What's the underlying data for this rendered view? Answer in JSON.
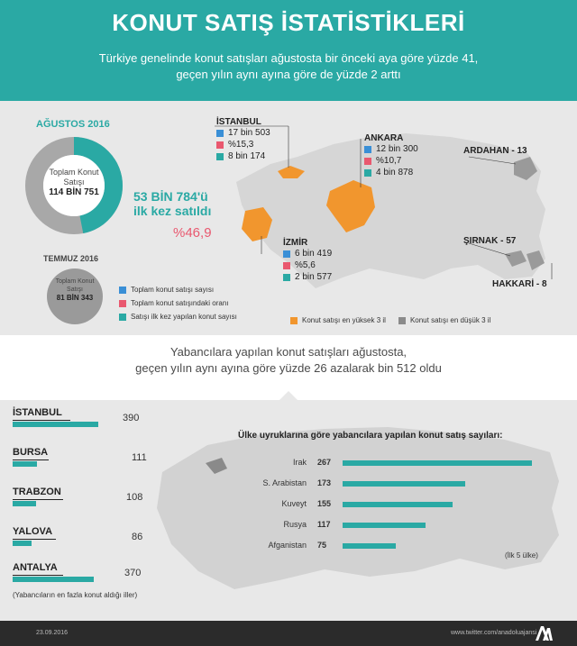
{
  "header": {
    "title": "KONUT SATIŞ İSTATİSTİKLERİ",
    "subtitle_line1": "Türkiye genelinde konut satışları ağustosta bir önceki aya göre yüzde 41,",
    "subtitle_line2": "geçen yılın aynı ayına göre de yüzde 2 arttı"
  },
  "summary": {
    "august_label": "AĞUSTOS 2016",
    "august_total_label": "Toplam Konut Satışı",
    "august_total_value": "114 BİN 751",
    "first_sale_line1": "53 BİN 784'ü",
    "first_sale_line2": "ilk kez satıldı",
    "first_sale_pct": "%46,9",
    "july_label": "TEMMUZ 2016",
    "july_total_label": "Toplam Konut Satışı",
    "july_total_value": "81 BİN 343"
  },
  "cities": [
    {
      "name": "İSTANBUL",
      "total": "17 bin 503",
      "share": "%15,3",
      "first": "8 bin 174"
    },
    {
      "name": "ANKARA",
      "total": "12 bin 300",
      "share": "%10,7",
      "first": "4 bin 878"
    },
    {
      "name": "İZMİR",
      "total": "6 bin 419",
      "share": "%5,6",
      "first": "2 bin 577"
    }
  ],
  "lowest_cities": [
    {
      "label": "ARDAHAN - 13"
    },
    {
      "label": "ŞIRNAK - 57"
    },
    {
      "label": "HAKKARİ - 8"
    }
  ],
  "legend": {
    "blue": "Toplam konut satışı sayısı",
    "pink": "Toplam konut satışındaki oranı",
    "teal": "Satışı ilk kez yapılan konut sayısı",
    "orange": "Konut satışı en yüksek 3 il",
    "gray": "Konut satışı en düşük 3 il"
  },
  "colors": {
    "teal": "#2aa9a4",
    "blue": "#3a8fd6",
    "pink": "#e9586f",
    "orange": "#f1962e",
    "gray": "#8a8a8a"
  },
  "foreign": {
    "line1": "Yabancılara yapılan konut satışları ağustosta,",
    "line2": "geçen yılın aynı ayına göre yüzde 26 azalarak bin 512 oldu",
    "provinces_note": "(Yabancıların en fazla konut aldığı iller)",
    "nationality_title": "Ülke uyruklarına göre yabancılara yapılan konut satış sayıları:",
    "top5_note": "(İlk 5 ülke)"
  },
  "chart_data": [
    {
      "type": "bar",
      "categories": [
        "İSTANBUL",
        "BURSA",
        "TRABZON",
        "YALOVA",
        "ANTALYA"
      ],
      "values": [
        390,
        111,
        108,
        86,
        370
      ],
      "title": "",
      "xlabel": "",
      "ylabel": ""
    },
    {
      "type": "bar",
      "categories": [
        "Irak",
        "S. Arabistan",
        "Kuveyt",
        "Rusya",
        "Afganistan"
      ],
      "values": [
        267,
        173,
        155,
        117,
        75
      ],
      "title": "Ülke uyruklarına göre yabancılara yapılan konut satış sayıları:",
      "xlabel": "",
      "ylabel": ""
    },
    {
      "type": "pie",
      "categories": [
        "İlk kez satılan",
        "Diğer"
      ],
      "values": [
        53784,
        60967
      ],
      "title": "",
      "legend": "none"
    }
  ],
  "footer": {
    "date": "23.09.2016",
    "url": "www.twitter.com/anadoluajansi"
  }
}
